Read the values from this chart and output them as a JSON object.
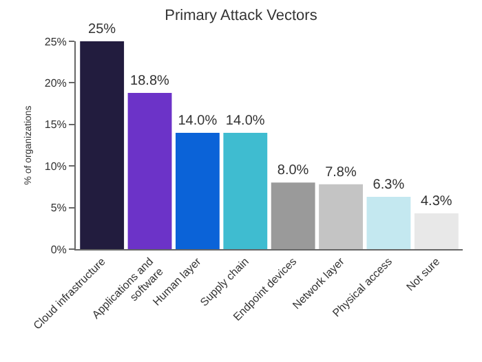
{
  "chart_data": {
    "type": "bar",
    "title": "Primary Attack Vectors",
    "ylabel": "% of organizations",
    "categories": [
      "Cloud infrastructure",
      "Applications and software",
      "Human layer",
      "Supply chain",
      "Endpoint devices",
      "Network layer",
      "Physical access",
      "Not sure"
    ],
    "values": [
      25,
      18.8,
      14.0,
      14.0,
      8.0,
      7.8,
      6.3,
      4.3
    ],
    "value_labels": [
      "25%",
      "18.8%",
      "14.0%",
      "14.0%",
      "8.0%",
      "7.8%",
      "6.3%",
      "4.3%"
    ],
    "colors": [
      "#221c3e",
      "#6c33c8",
      "#0b63d8",
      "#3fbcd0",
      "#9a9a9a",
      "#c4c4c4",
      "#c4e8f0",
      "#e8e8e8"
    ],
    "ylim": [
      0,
      25
    ],
    "yticks": [
      {
        "value": 0,
        "label": "0%"
      },
      {
        "value": 5,
        "label": "5%"
      },
      {
        "value": 10,
        "label": "10%"
      },
      {
        "value": 15,
        "label": "15%"
      },
      {
        "value": 20,
        "label": "20%"
      },
      {
        "value": 25,
        "label": "25%"
      }
    ]
  }
}
